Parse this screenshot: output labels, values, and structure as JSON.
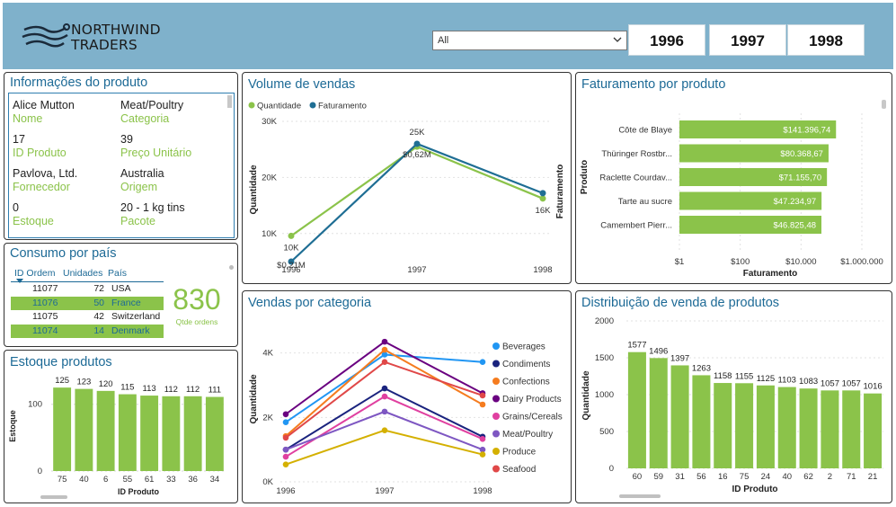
{
  "header": {
    "logo_line1": "NORTHWIND",
    "logo_line2": "TRADERS",
    "dropdown_value": "All",
    "years": [
      "1996",
      "1997",
      "1998"
    ]
  },
  "product_info": {
    "title": "Informações do produto",
    "fields": [
      {
        "value": "Alice Mutton",
        "label": "Nome"
      },
      {
        "value": "Meat/Poultry",
        "label": "Categoria"
      },
      {
        "value": "17",
        "label": "ID Produto"
      },
      {
        "value": "39",
        "label": "Preço Unitário"
      },
      {
        "value": "Pavlova, Ltd.",
        "label": "Fornecedor"
      },
      {
        "value": "Australia",
        "label": "Origem"
      },
      {
        "value": "0",
        "label": "Estoque"
      },
      {
        "value": "20 - 1 kg tins",
        "label": "Pacote"
      }
    ]
  },
  "consumption": {
    "title": "Consumo por país",
    "columns": [
      "ID Ordem",
      "Unidades",
      "País"
    ],
    "rows": [
      {
        "id": "11077",
        "units": "72",
        "country": "USA",
        "highlight": false
      },
      {
        "id": "11076",
        "units": "50",
        "country": "France",
        "highlight": true
      },
      {
        "id": "11075",
        "units": "42",
        "country": "Switzerland",
        "highlight": false
      },
      {
        "id": "11074",
        "units": "14",
        "country": "Denmark",
        "highlight": true
      }
    ],
    "total": "830",
    "total_label": "Qtde ordens"
  },
  "colors": {
    "accent": "#8bc34a",
    "title_blue": "#1d6a96",
    "header_bg": "#7fb1cb",
    "dark_blue": "#1f6e94"
  },
  "chart_data": [
    {
      "id": "sales_volume",
      "type": "line",
      "title": "Volume de vendas",
      "legend": [
        "Quantidade",
        "Faturamento"
      ],
      "legend_position": "top-left",
      "x": [
        "1996",
        "1997",
        "1998"
      ],
      "ylabel_left": "Quantidade",
      "ylabel_right": "Faturamento",
      "yticks": [
        "10K",
        "20K",
        "30K"
      ],
      "ylim": [
        5000,
        30000
      ],
      "series": [
        {
          "name": "Quantidade",
          "color": "#8bc34a",
          "values": [
            9581,
            25489,
            16247
          ]
        },
        {
          "name": "Faturamento",
          "color": "#1f6e94",
          "values": [
            5000,
            26000,
            17200
          ]
        }
      ],
      "data_labels": [
        {
          "text": "10K",
          "xi": 0,
          "y": 9581
        },
        {
          "text": "$0,21M",
          "xi": 0,
          "y": 5000
        },
        {
          "text": "25K",
          "xi": 1,
          "y": 25489
        },
        {
          "text": "$0,62M",
          "xi": 1,
          "y": 26000
        },
        {
          "text": "16K",
          "xi": 2,
          "y": 16247
        }
      ]
    },
    {
      "id": "revenue_by_product",
      "type": "bar",
      "orientation": "horizontal",
      "title": "Faturamento por produto",
      "xlabel": "Faturamento",
      "ylabel": "Produto",
      "xscale": "log",
      "xticks": [
        "$1",
        "$100",
        "$10.000",
        "$1.000.000"
      ],
      "xlim": [
        1,
        1000000
      ],
      "categories": [
        "Côte de Blaye",
        "Thüringer Rostbr...",
        "Raclette Courdav...",
        "Tarte au sucre",
        "Camembert Pierr..."
      ],
      "values": [
        141396.74,
        80368.67,
        71155.7,
        47234.97,
        46825.48
      ],
      "value_labels": [
        "$141.396,74",
        "$80.368,67",
        "$71.155,70",
        "$47.234,97",
        "$46.825,48"
      ]
    },
    {
      "id": "stock_products",
      "type": "bar",
      "title": "Estoque produtos",
      "xlabel": "ID Produto",
      "ylabel": "Estoque",
      "yticks": [
        "0",
        "100"
      ],
      "ylim": [
        0,
        140
      ],
      "categories": [
        "75",
        "40",
        "6",
        "55",
        "61",
        "33",
        "36",
        "34"
      ],
      "values": [
        125,
        123,
        120,
        115,
        113,
        112,
        112,
        111
      ]
    },
    {
      "id": "sales_by_category",
      "type": "line",
      "title": "Vendas por categoria",
      "ylabel": "Quantidade",
      "x": [
        "1996",
        "1997",
        "1998"
      ],
      "yticks": [
        "0K",
        "2K",
        "4K"
      ],
      "ylim": [
        0,
        4800
      ],
      "legend_position": "right",
      "series": [
        {
          "name": "Beverages",
          "color": "#2196f3",
          "values": [
            1850,
            3950,
            3720
          ]
        },
        {
          "name": "Condiments",
          "color": "#1a237e",
          "values": [
            1000,
            2900,
            1400
          ]
        },
        {
          "name": "Confections",
          "color": "#f57c1f",
          "values": [
            1420,
            4100,
            2400
          ]
        },
        {
          "name": "Dairy Products",
          "color": "#6a0080",
          "values": [
            2100,
            4350,
            2750
          ]
        },
        {
          "name": "Grains/Cereals",
          "color": "#e040a0",
          "values": [
            780,
            2650,
            1330
          ]
        },
        {
          "name": "Meat/Poultry",
          "color": "#7e57c2",
          "values": [
            1000,
            2180,
            1000
          ]
        },
        {
          "name": "Produce",
          "color": "#d4b000",
          "values": [
            540,
            1600,
            850
          ]
        },
        {
          "name": "Seafood",
          "color": "#e04848",
          "values": [
            1370,
            3720,
            2680
          ]
        }
      ]
    },
    {
      "id": "product_sales_distribution",
      "type": "bar",
      "title": "Distribuição de venda de produtos",
      "xlabel": "ID Produto",
      "ylabel": "Quantidade",
      "yticks": [
        "0",
        "500",
        "1000",
        "1500",
        "2000"
      ],
      "ylim": [
        0,
        2000
      ],
      "categories": [
        "60",
        "59",
        "31",
        "56",
        "16",
        "75",
        "24",
        "40",
        "62",
        "2",
        "71",
        "21"
      ],
      "values": [
        1577,
        1496,
        1397,
        1263,
        1158,
        1155,
        1125,
        1103,
        1083,
        1057,
        1057,
        1016
      ]
    }
  ]
}
